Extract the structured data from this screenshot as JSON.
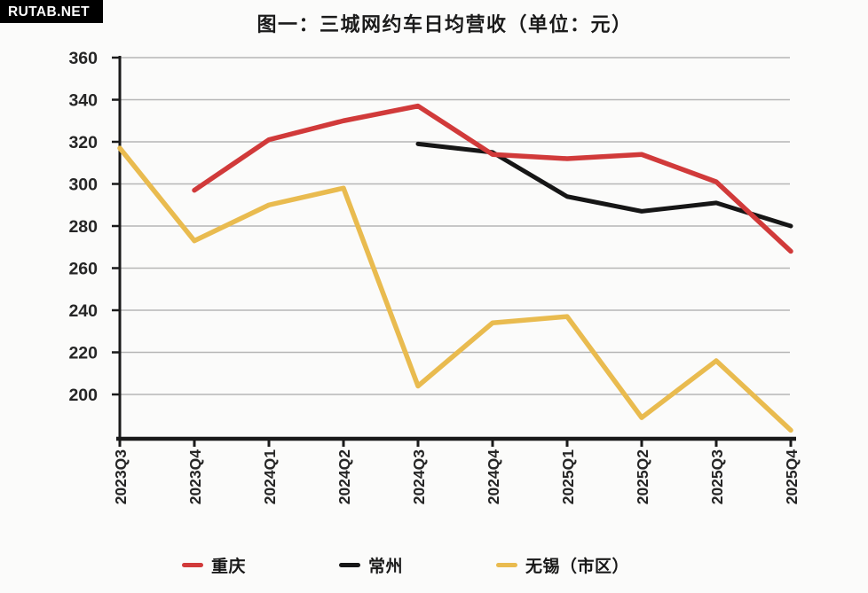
{
  "watermark": {
    "text": "RUTAB.NET",
    "bg": "#000000",
    "fg": "#ffffff"
  },
  "chart_data": {
    "type": "line",
    "title": "图一：三城网约车日均营收（单位：元）",
    "unit": "元",
    "categories": [
      "2023Q3",
      "2023Q4",
      "2024Q1",
      "2024Q2",
      "2024Q3",
      "2024Q4",
      "2025Q1",
      "2025Q2",
      "2025Q3",
      "2025Q4"
    ],
    "series": [
      {
        "key": "chongqing",
        "name": "重庆",
        "color": "#d13a3a",
        "values": [
          null,
          297,
          321,
          330,
          337,
          314,
          312,
          314,
          301,
          268
        ]
      },
      {
        "key": "changzhou",
        "name": "常州",
        "color": "#161616",
        "values": [
          null,
          null,
          null,
          null,
          319,
          315,
          294,
          287,
          291,
          280
        ]
      },
      {
        "key": "wuxi-urban",
        "name": "无锡（市区）",
        "color": "#e9bb4f",
        "values": [
          317,
          273,
          290,
          298,
          204,
          234,
          237,
          189,
          216,
          183
        ]
      }
    ],
    "ylim": [
      179,
      360
    ],
    "yticks": [
      200,
      220,
      240,
      260,
      280,
      300,
      320,
      340,
      360
    ],
    "grid": true,
    "legend_position": "bottom",
    "z_order": [
      "changzhou",
      "wuxi-urban",
      "chongqing"
    ],
    "axis_color": "#1a1a1a",
    "grid_color": "#b6b6b6"
  }
}
